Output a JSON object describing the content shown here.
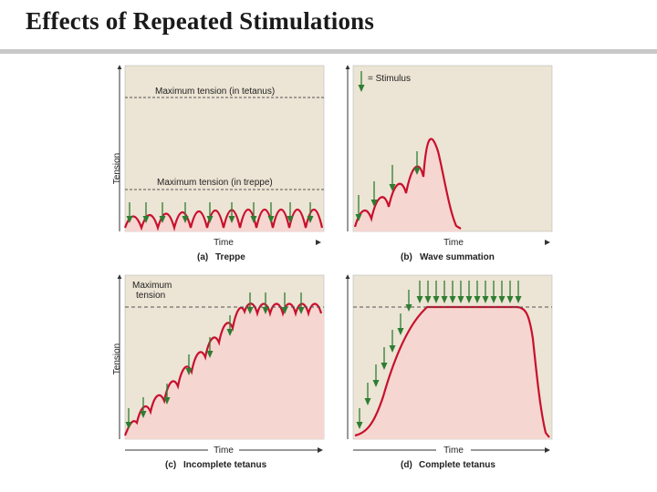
{
  "page": {
    "title": "Effects of Repeated Stimulations"
  },
  "panels": {
    "a": {
      "caption_letter": "(a)",
      "caption_name": "Treppe",
      "ylabel": "Tension",
      "xlabel": "Time",
      "line_upper": "Maximum tension (in tetanus)",
      "line_lower": "Maximum tension (in treppe)"
    },
    "b": {
      "caption_letter": "(b)",
      "caption_name": "Wave summation",
      "xlabel": "Time",
      "legend": "= Stimulus"
    },
    "c": {
      "caption_letter": "(c)",
      "caption_name": "Incomplete  tetanus",
      "ylabel": "Tension",
      "xlabel": "Time",
      "max_line_1": "Maximum",
      "max_line_2": "tension"
    },
    "d": {
      "caption_letter": "(d)",
      "caption_name": "Complete tetanus",
      "xlabel": "Time"
    }
  },
  "colors": {
    "panel_bg": "#ece4d4",
    "fill": "#f6d6d0",
    "curve": "#c8102e",
    "arrow": "#2e7d32",
    "dashed": "#555555"
  }
}
